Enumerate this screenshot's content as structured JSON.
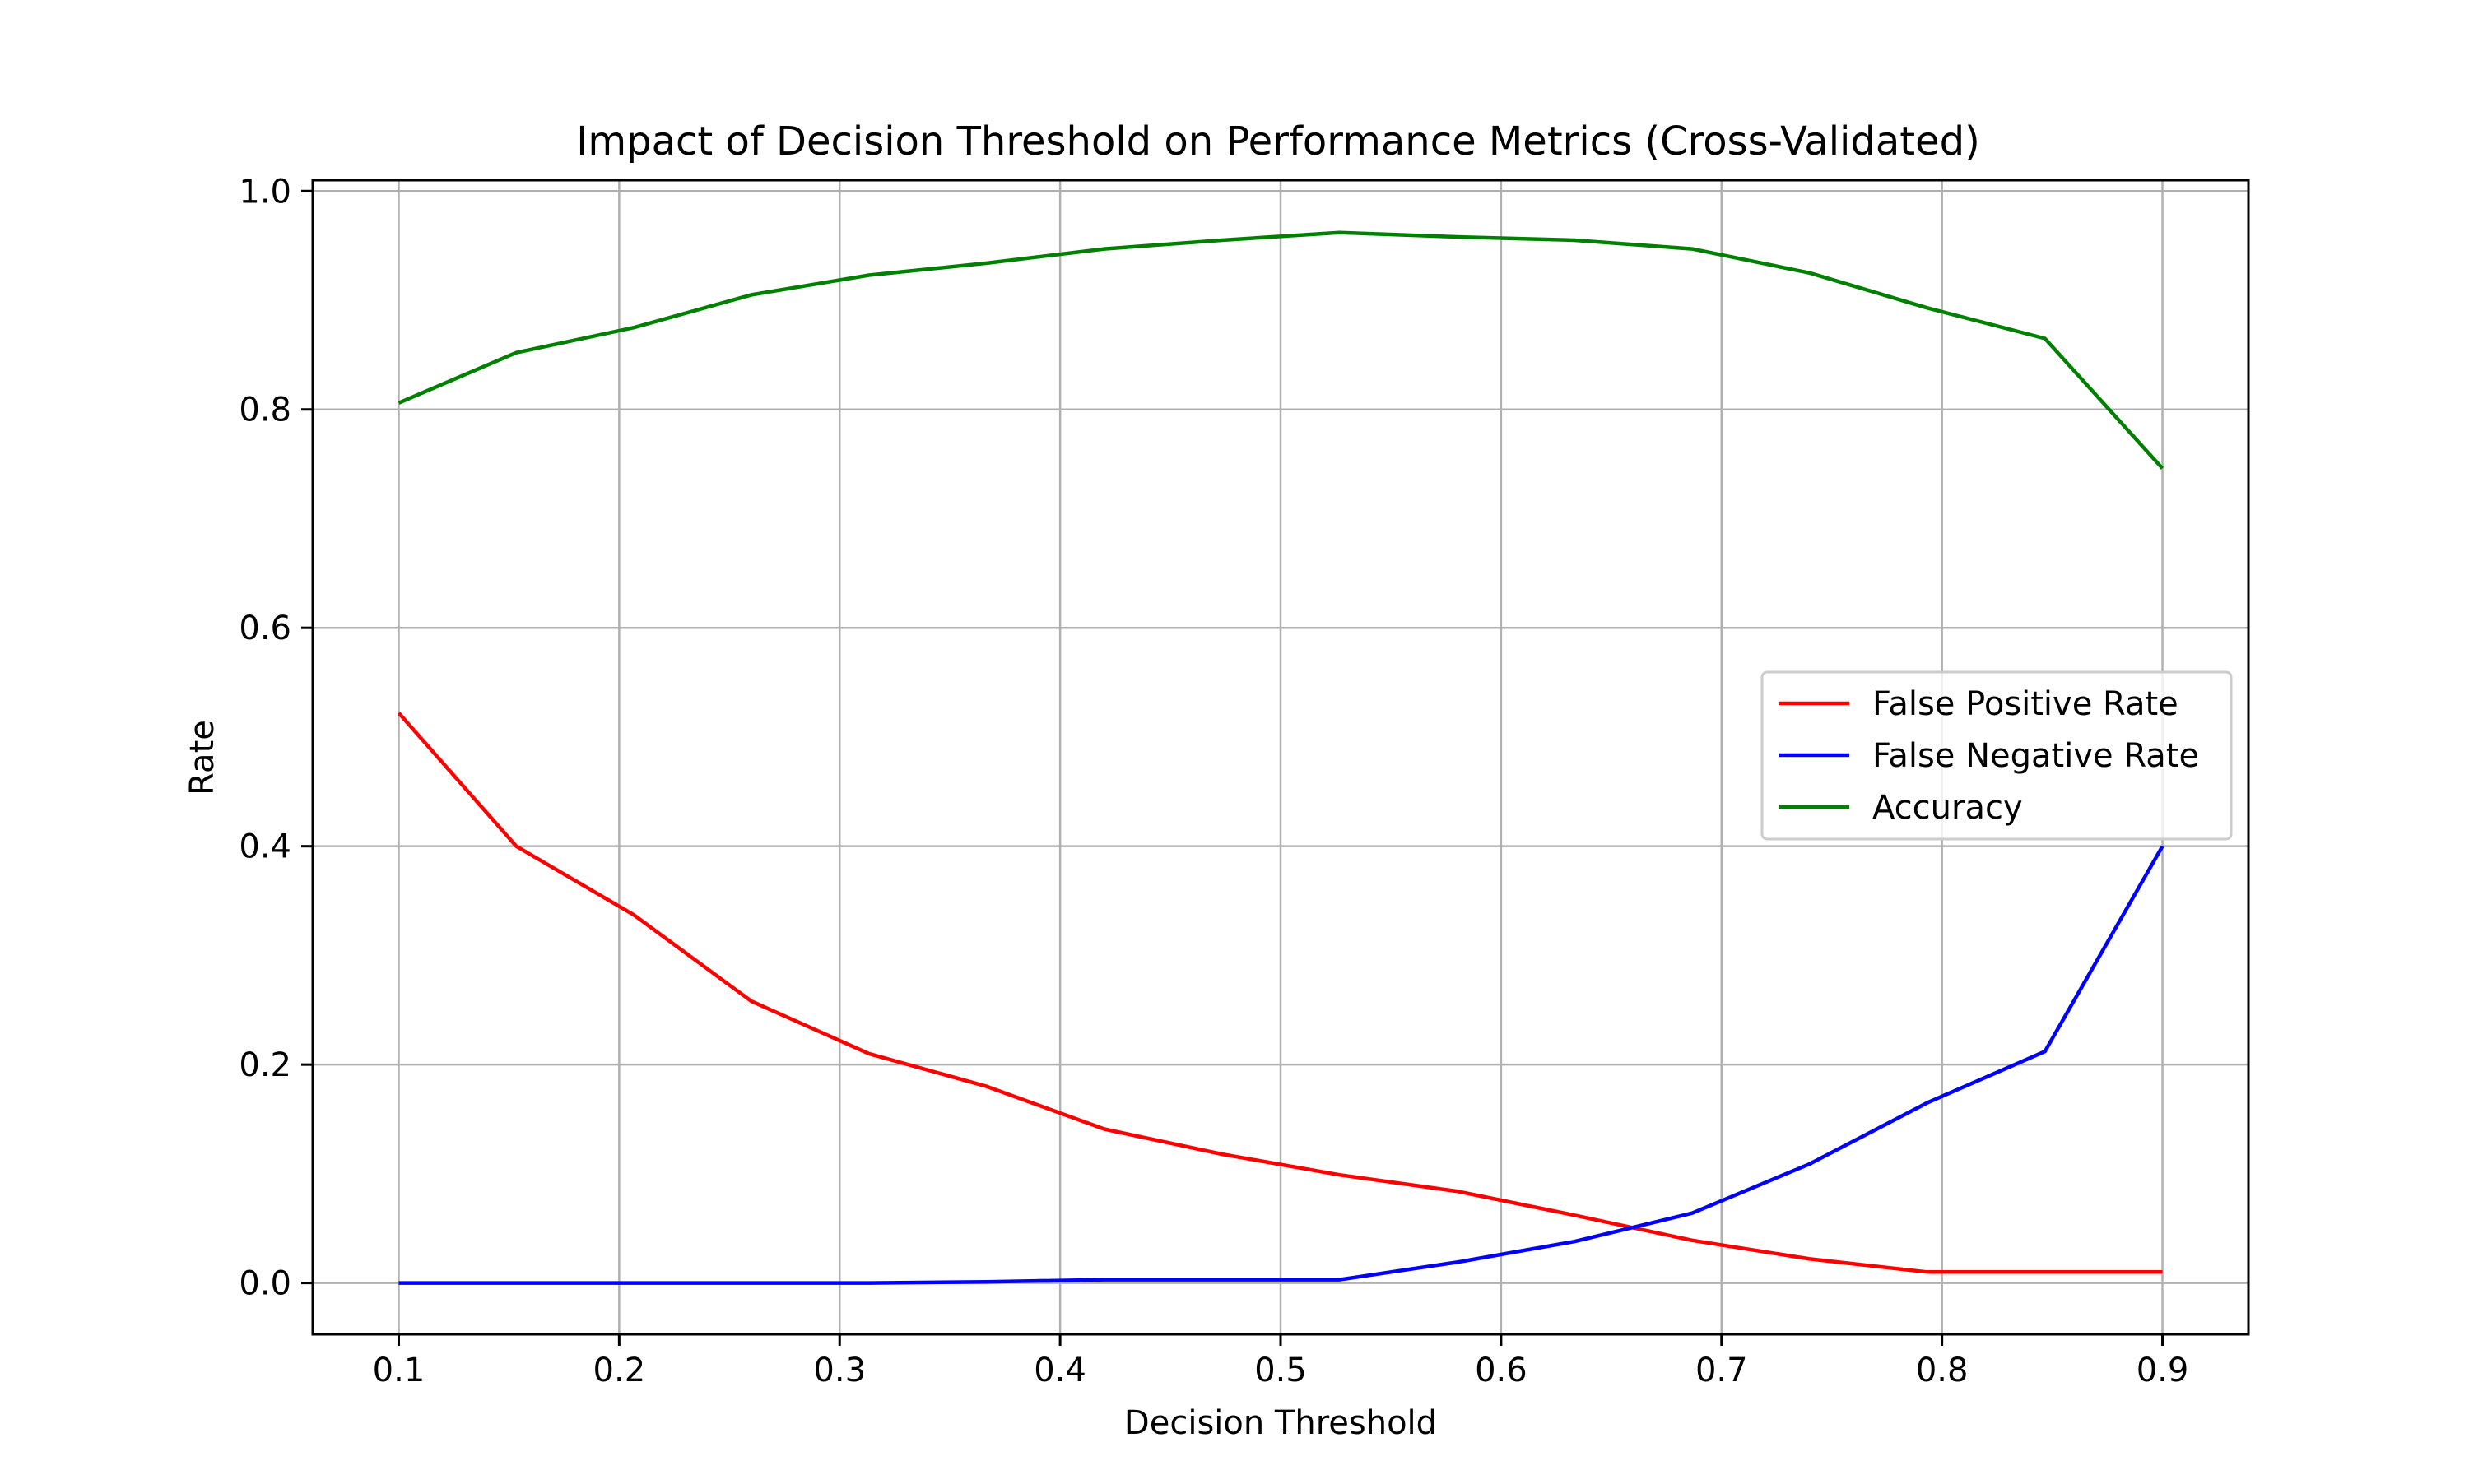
{
  "chart_data": {
    "type": "line",
    "title": "Impact of Decision Threshold on Performance Metrics (Cross-Validated)",
    "xlabel": "Decision Threshold",
    "ylabel": "Rate",
    "xlim": [
      0.061,
      0.939
    ],
    "ylim": [
      -0.047,
      1.01
    ],
    "xticks": [
      0.1,
      0.2,
      0.3,
      0.4,
      0.5,
      0.6,
      0.7,
      0.8,
      0.9
    ],
    "xtick_labels": [
      "0.1",
      "0.2",
      "0.3",
      "0.4",
      "0.5",
      "0.6",
      "0.7",
      "0.8",
      "0.9"
    ],
    "yticks": [
      0.0,
      0.2,
      0.4,
      0.6,
      0.8,
      1.0
    ],
    "ytick_labels": [
      "0.0",
      "0.2",
      "0.4",
      "0.6",
      "0.8",
      "1.0"
    ],
    "grid": true,
    "legend_position": "center-right",
    "x": [
      0.1,
      0.1533,
      0.2067,
      0.26,
      0.3133,
      0.3667,
      0.42,
      0.4733,
      0.5267,
      0.58,
      0.6333,
      0.6867,
      0.74,
      0.7933,
      0.8467,
      0.9
    ],
    "series": [
      {
        "name": "False Positive Rate",
        "color": "#ff0000",
        "values": [
          0.522,
          0.4,
          0.337,
          0.258,
          0.21,
          0.18,
          0.141,
          0.118,
          0.099,
          0.084,
          0.062,
          0.039,
          0.022,
          0.01,
          0.01,
          0.01
        ]
      },
      {
        "name": "False Negative Rate",
        "color": "#0000ff",
        "values": [
          0.0,
          0.0,
          0.0,
          0.0,
          0.0,
          0.001,
          0.003,
          0.003,
          0.003,
          0.019,
          0.038,
          0.064,
          0.109,
          0.165,
          0.212,
          0.4
        ]
      },
      {
        "name": "Accuracy",
        "color": "#008000",
        "values": [
          0.806,
          0.852,
          0.875,
          0.905,
          0.923,
          0.934,
          0.947,
          0.955,
          0.962,
          0.958,
          0.955,
          0.947,
          0.925,
          0.893,
          0.865,
          0.746
        ]
      }
    ]
  }
}
